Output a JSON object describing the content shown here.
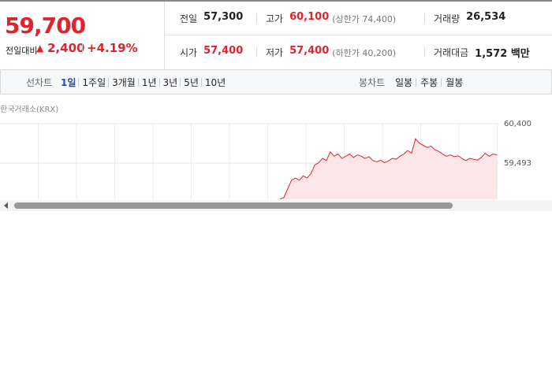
{
  "header": {
    "price": "59,700",
    "change_label": "전일대비",
    "change": "2,400",
    "change_rate": "+4.19%"
  },
  "table": {
    "rows": [
      [
        {
          "label": "전일",
          "value": "57,300"
        },
        {
          "label": "고가",
          "value": "60,100",
          "note": "(상한가 74,400)"
        },
        {
          "label": "거래량",
          "value": "26,534"
        }
      ],
      [
        {
          "label": "시가",
          "value": "57,400"
        },
        {
          "label": "저가",
          "value": "57,400",
          "note": "(하한가 40,200)"
        },
        {
          "label": "거래대금",
          "value": "1,572 백만"
        }
      ]
    ]
  },
  "tabs": {
    "line_label": "선차트",
    "line_tabs": [
      "1일",
      "1주일",
      "3개월",
      "1년",
      "3년",
      "5년",
      "10년"
    ],
    "candle_label": "봉차트",
    "candle_tabs": [
      "일봉",
      "주봉",
      "월봉"
    ]
  },
  "source": "한국거래소(KRX)",
  "chart_data": {
    "type": "line",
    "color": "#e0232d",
    "ylim": [
      58660,
      60560
    ],
    "yticks": [
      {
        "value": 60400,
        "label": "60,400"
      },
      {
        "value": 59493,
        "label": "59,493"
      }
    ],
    "values": [
      58670,
      58700,
      58900,
      59100,
      59150,
      59100,
      59200,
      59150,
      59250,
      59450,
      59500,
      59600,
      59550,
      59750,
      59650,
      59700,
      59600,
      59650,
      59700,
      59620,
      59680,
      59650,
      59600,
      59640,
      59550,
      59520,
      59560,
      59500,
      59540,
      59600,
      59580,
      59650,
      59700,
      59780,
      59720,
      60050,
      59950,
      59900,
      59850,
      59880,
      59800,
      59760,
      59700,
      59650,
      59680,
      59640,
      59660,
      59600,
      59550,
      59600,
      59580,
      59560,
      59620,
      59720,
      59650,
      59700,
      59680
    ]
  }
}
